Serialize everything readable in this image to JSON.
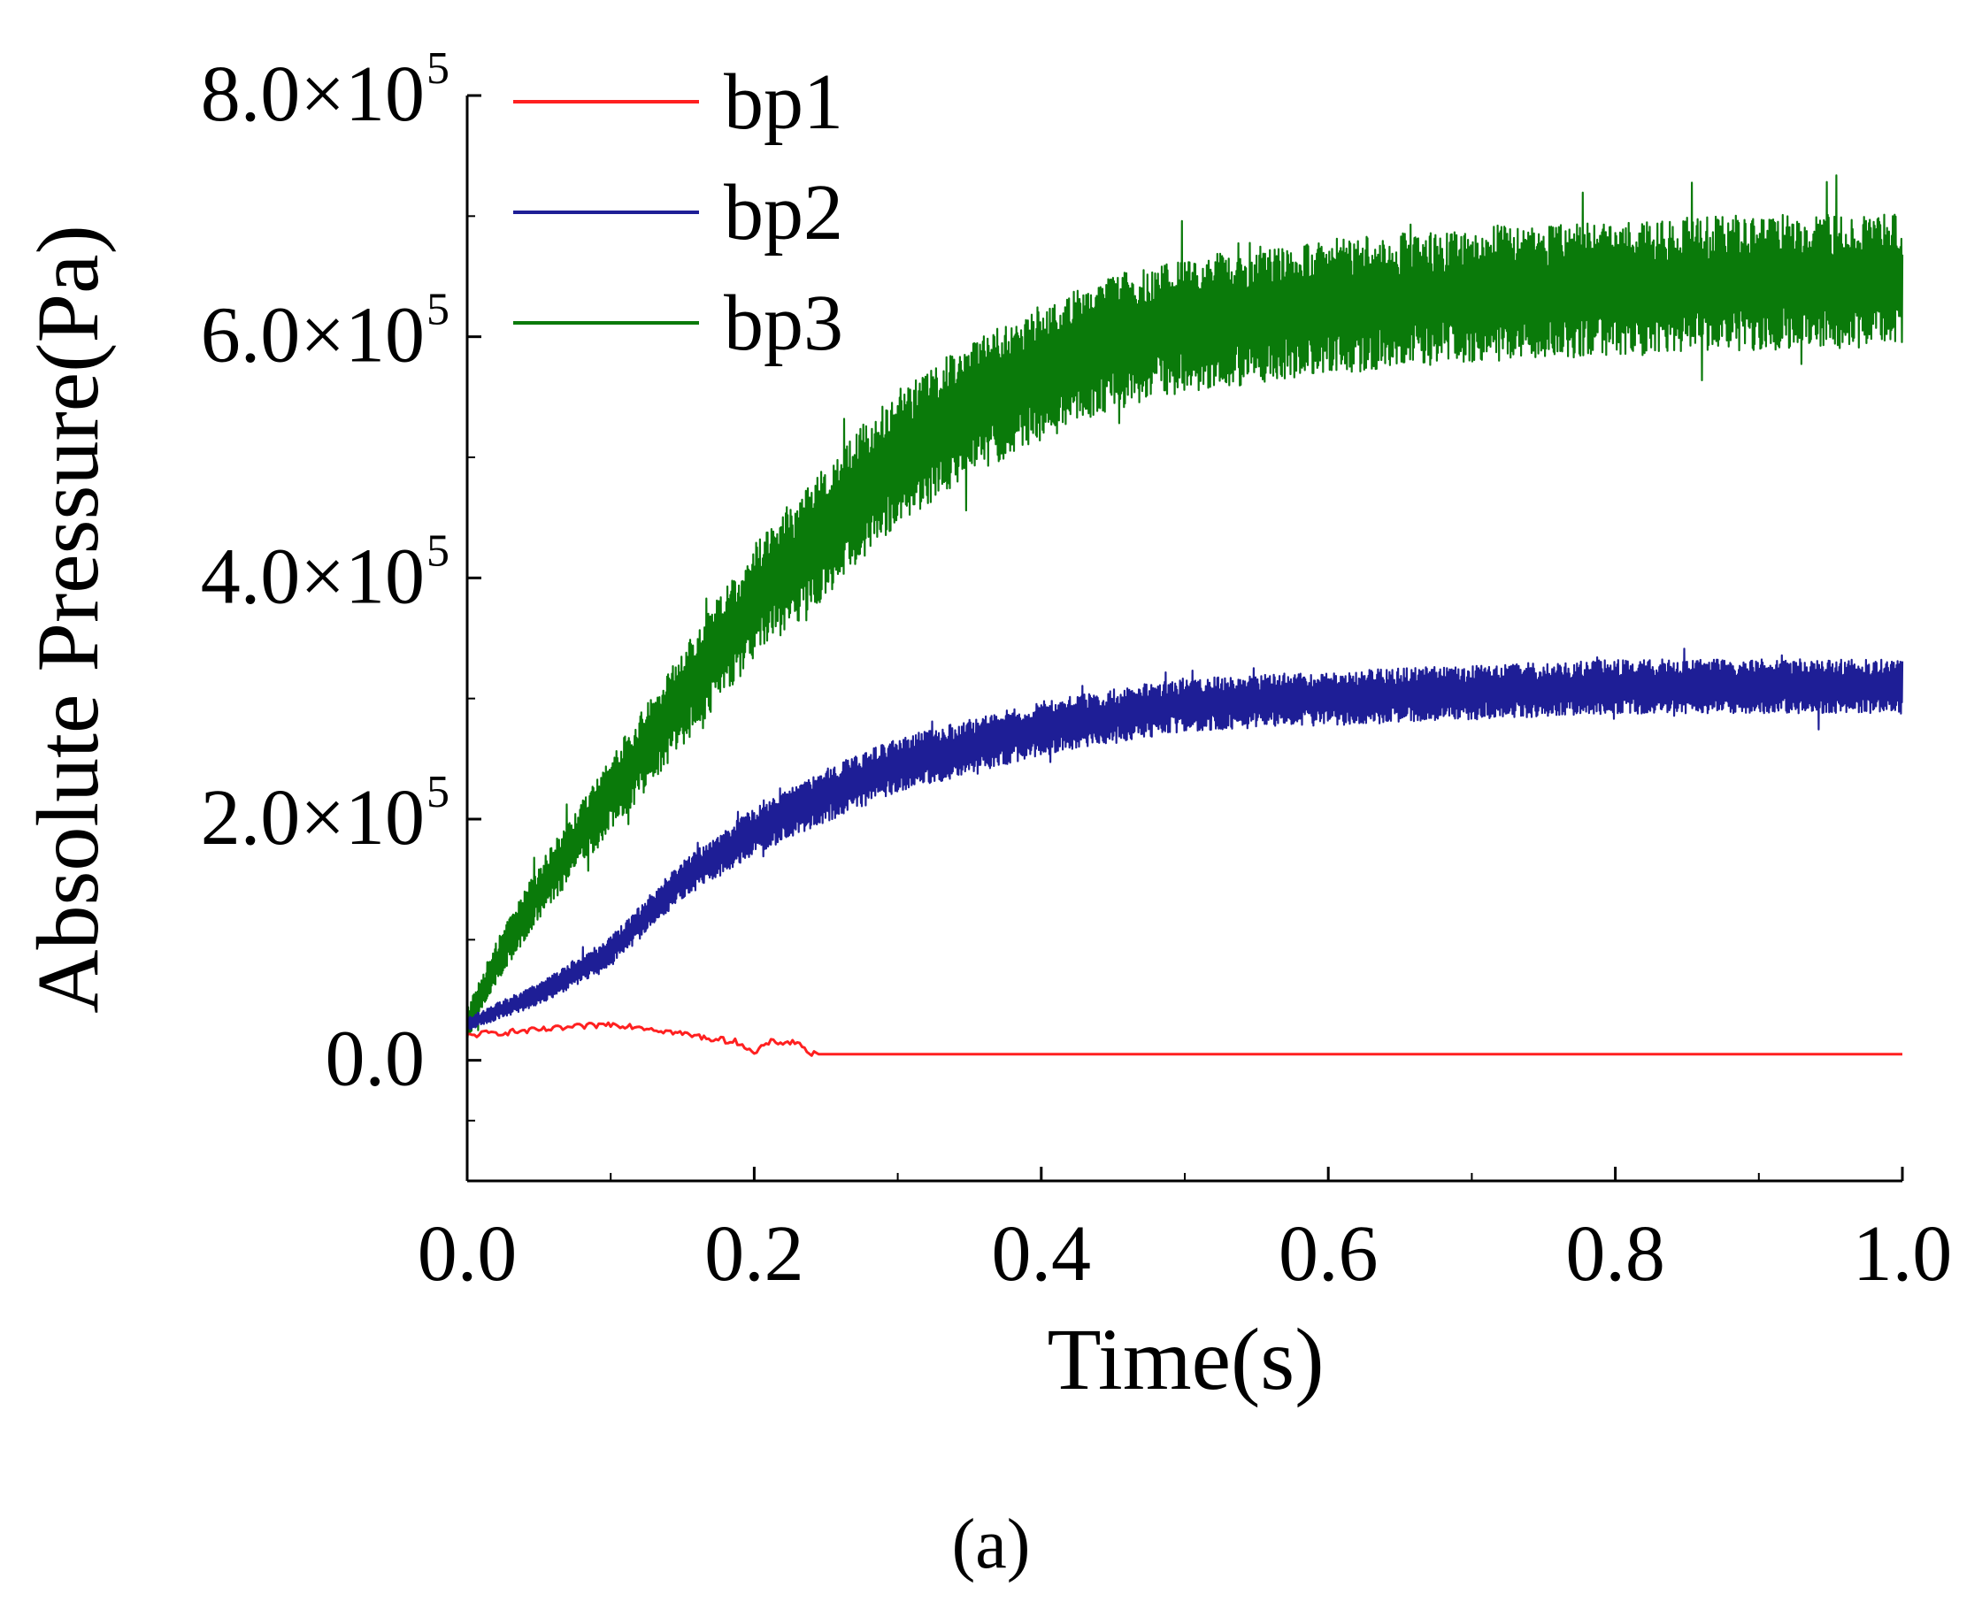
{
  "chart_data": {
    "type": "line",
    "xlabel": "Time(s)",
    "ylabel": "Absolute Pressure(Pa)",
    "xlim": [
      0.0,
      1.0
    ],
    "ylim": [
      -100000,
      800000
    ],
    "x_ticks": [
      0.0,
      0.2,
      0.4,
      0.6,
      0.8,
      1.0
    ],
    "x_tick_labels": [
      "0.0",
      "0.2",
      "0.4",
      "0.6",
      "0.8",
      "1.0"
    ],
    "y_ticks": [
      0,
      200000,
      400000,
      600000,
      800000
    ],
    "y_tick_labels": [
      {
        "mantissa": "0.0",
        "exponent": ""
      },
      {
        "mantissa": "2.0×10",
        "exponent": "5"
      },
      {
        "mantissa": "4.0×10",
        "exponent": "5"
      },
      {
        "mantissa": "6.0×10",
        "exponent": "5"
      },
      {
        "mantissa": "8.0×10",
        "exponent": "5"
      }
    ],
    "legend_position": "top-left",
    "caption": "(a)",
    "series": [
      {
        "name": "bp1",
        "color": "#ff2020",
        "noise_amplitude": 0,
        "x": [
          0.0,
          0.01,
          0.05,
          0.1,
          0.12,
          0.15,
          0.17,
          0.19,
          0.2,
          0.21,
          0.23,
          0.24,
          0.25,
          0.3,
          0.5,
          0.7,
          1.0
        ],
        "y": [
          20000,
          22000,
          25000,
          30000,
          28000,
          22000,
          18000,
          15000,
          5000,
          15000,
          15000,
          5000,
          5000,
          5000,
          5000,
          5000,
          5000
        ]
      },
      {
        "name": "bp2",
        "color": "#1e1e96",
        "noise_amplitude": 30000,
        "x": [
          0.0,
          0.02,
          0.05,
          0.1,
          0.15,
          0.2,
          0.25,
          0.3,
          0.35,
          0.4,
          0.45,
          0.5,
          0.6,
          0.7,
          0.8,
          0.9,
          1.0
        ],
        "y": [
          30000,
          40000,
          55000,
          90000,
          150000,
          190000,
          220000,
          245000,
          260000,
          275000,
          285000,
          295000,
          300000,
          305000,
          310000,
          310000,
          310000
        ]
      },
      {
        "name": "bp3",
        "color": "#0a7a0a",
        "noise_amplitude": 75000,
        "x": [
          0.0,
          0.02,
          0.05,
          0.1,
          0.15,
          0.2,
          0.25,
          0.3,
          0.35,
          0.4,
          0.45,
          0.5,
          0.6,
          0.7,
          0.8,
          0.9,
          1.0
        ],
        "y": [
          30000,
          80000,
          140000,
          220000,
          300000,
          380000,
          440000,
          500000,
          540000,
          570000,
          595000,
          610000,
          625000,
          635000,
          640000,
          645000,
          645000
        ]
      }
    ]
  }
}
